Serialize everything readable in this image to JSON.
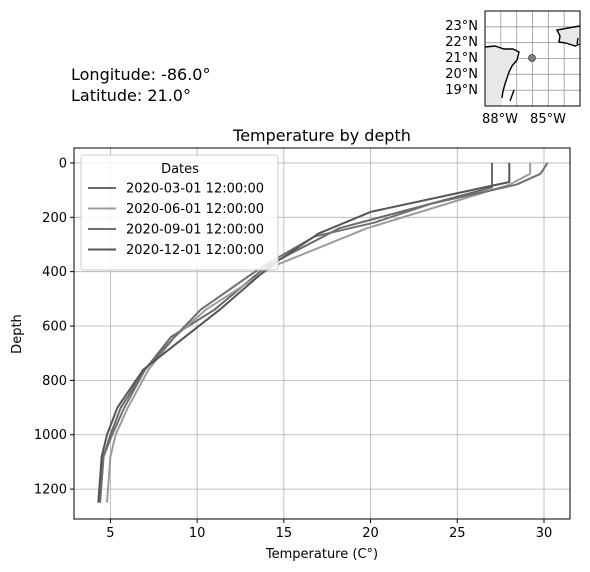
{
  "info": {
    "longitude_text": "Longitude: -86.0°",
    "latitude_text": "Latitude: 21.0°"
  },
  "minimap": {
    "lat_labels": [
      "23°N",
      "22°N",
      "21°N",
      "20°N",
      "19°N"
    ],
    "lon_labels": [
      "88°W",
      "85°W"
    ],
    "marker": {
      "lon": -86.0,
      "lat": 21.0
    },
    "land_color": "#e8e8e8",
    "coast_color": "#000000",
    "marker_color": "#808080"
  },
  "chart_data": {
    "type": "line",
    "title": "Temperature by depth",
    "xlabel": "Temperature (C°)",
    "ylabel": "Depth",
    "xlim": [
      2.9,
      31.5
    ],
    "ylim": [
      1310,
      -55
    ],
    "y_inverted": true,
    "xticks": [
      5,
      10,
      15,
      20,
      25,
      30
    ],
    "yticks": [
      0,
      200,
      400,
      600,
      800,
      1000,
      1200
    ],
    "grid": true,
    "legend": {
      "title": "Dates",
      "placement": "top-left"
    },
    "series": [
      {
        "name": "2020-03-01 12:00:00",
        "color": "#6a6a6a",
        "points": [
          [
            27.0,
            0
          ],
          [
            27.0,
            70
          ],
          [
            27.0,
            90
          ],
          [
            18.2,
            240
          ],
          [
            14.0,
            380
          ],
          [
            11.0,
            540
          ],
          [
            8.5,
            640
          ],
          [
            7.0,
            760
          ],
          [
            5.6,
            900
          ],
          [
            5.0,
            1000
          ],
          [
            4.6,
            1080
          ],
          [
            4.4,
            1250
          ]
        ]
      },
      {
        "name": "2020-06-01 12:00:00",
        "color": "#9c9c9c",
        "points": [
          [
            29.2,
            0
          ],
          [
            29.2,
            40
          ],
          [
            28.0,
            80
          ],
          [
            19.8,
            240
          ],
          [
            14.4,
            380
          ],
          [
            10.5,
            540
          ],
          [
            8.7,
            640
          ],
          [
            7.2,
            760
          ],
          [
            6.0,
            900
          ],
          [
            5.3,
            1000
          ],
          [
            5.0,
            1080
          ],
          [
            4.8,
            1250
          ]
        ]
      },
      {
        "name": "2020-09-01 12:00:00",
        "color": "#707070",
        "points": [
          [
            30.2,
            0
          ],
          [
            29.8,
            40
          ],
          [
            28.4,
            80
          ],
          [
            23.5,
            150
          ],
          [
            20.2,
            220
          ],
          [
            16.8,
            270
          ],
          [
            13.8,
            380
          ],
          [
            10.2,
            540
          ],
          [
            8.7,
            640
          ],
          [
            7.0,
            760
          ],
          [
            5.8,
            900
          ],
          [
            5.1,
            1000
          ],
          [
            4.6,
            1080
          ],
          [
            4.4,
            1250
          ]
        ]
      },
      {
        "name": "2020-12-01 12:00:00",
        "color": "#555555",
        "points": [
          [
            28.0,
            0
          ],
          [
            28.0,
            60
          ],
          [
            28.0,
            70
          ],
          [
            20.0,
            180
          ],
          [
            17.0,
            260
          ],
          [
            14.2,
            380
          ],
          [
            11.3,
            540
          ],
          [
            8.9,
            660
          ],
          [
            6.9,
            760
          ],
          [
            5.4,
            900
          ],
          [
            4.8,
            1000
          ],
          [
            4.5,
            1080
          ],
          [
            4.3,
            1250
          ]
        ]
      }
    ]
  }
}
